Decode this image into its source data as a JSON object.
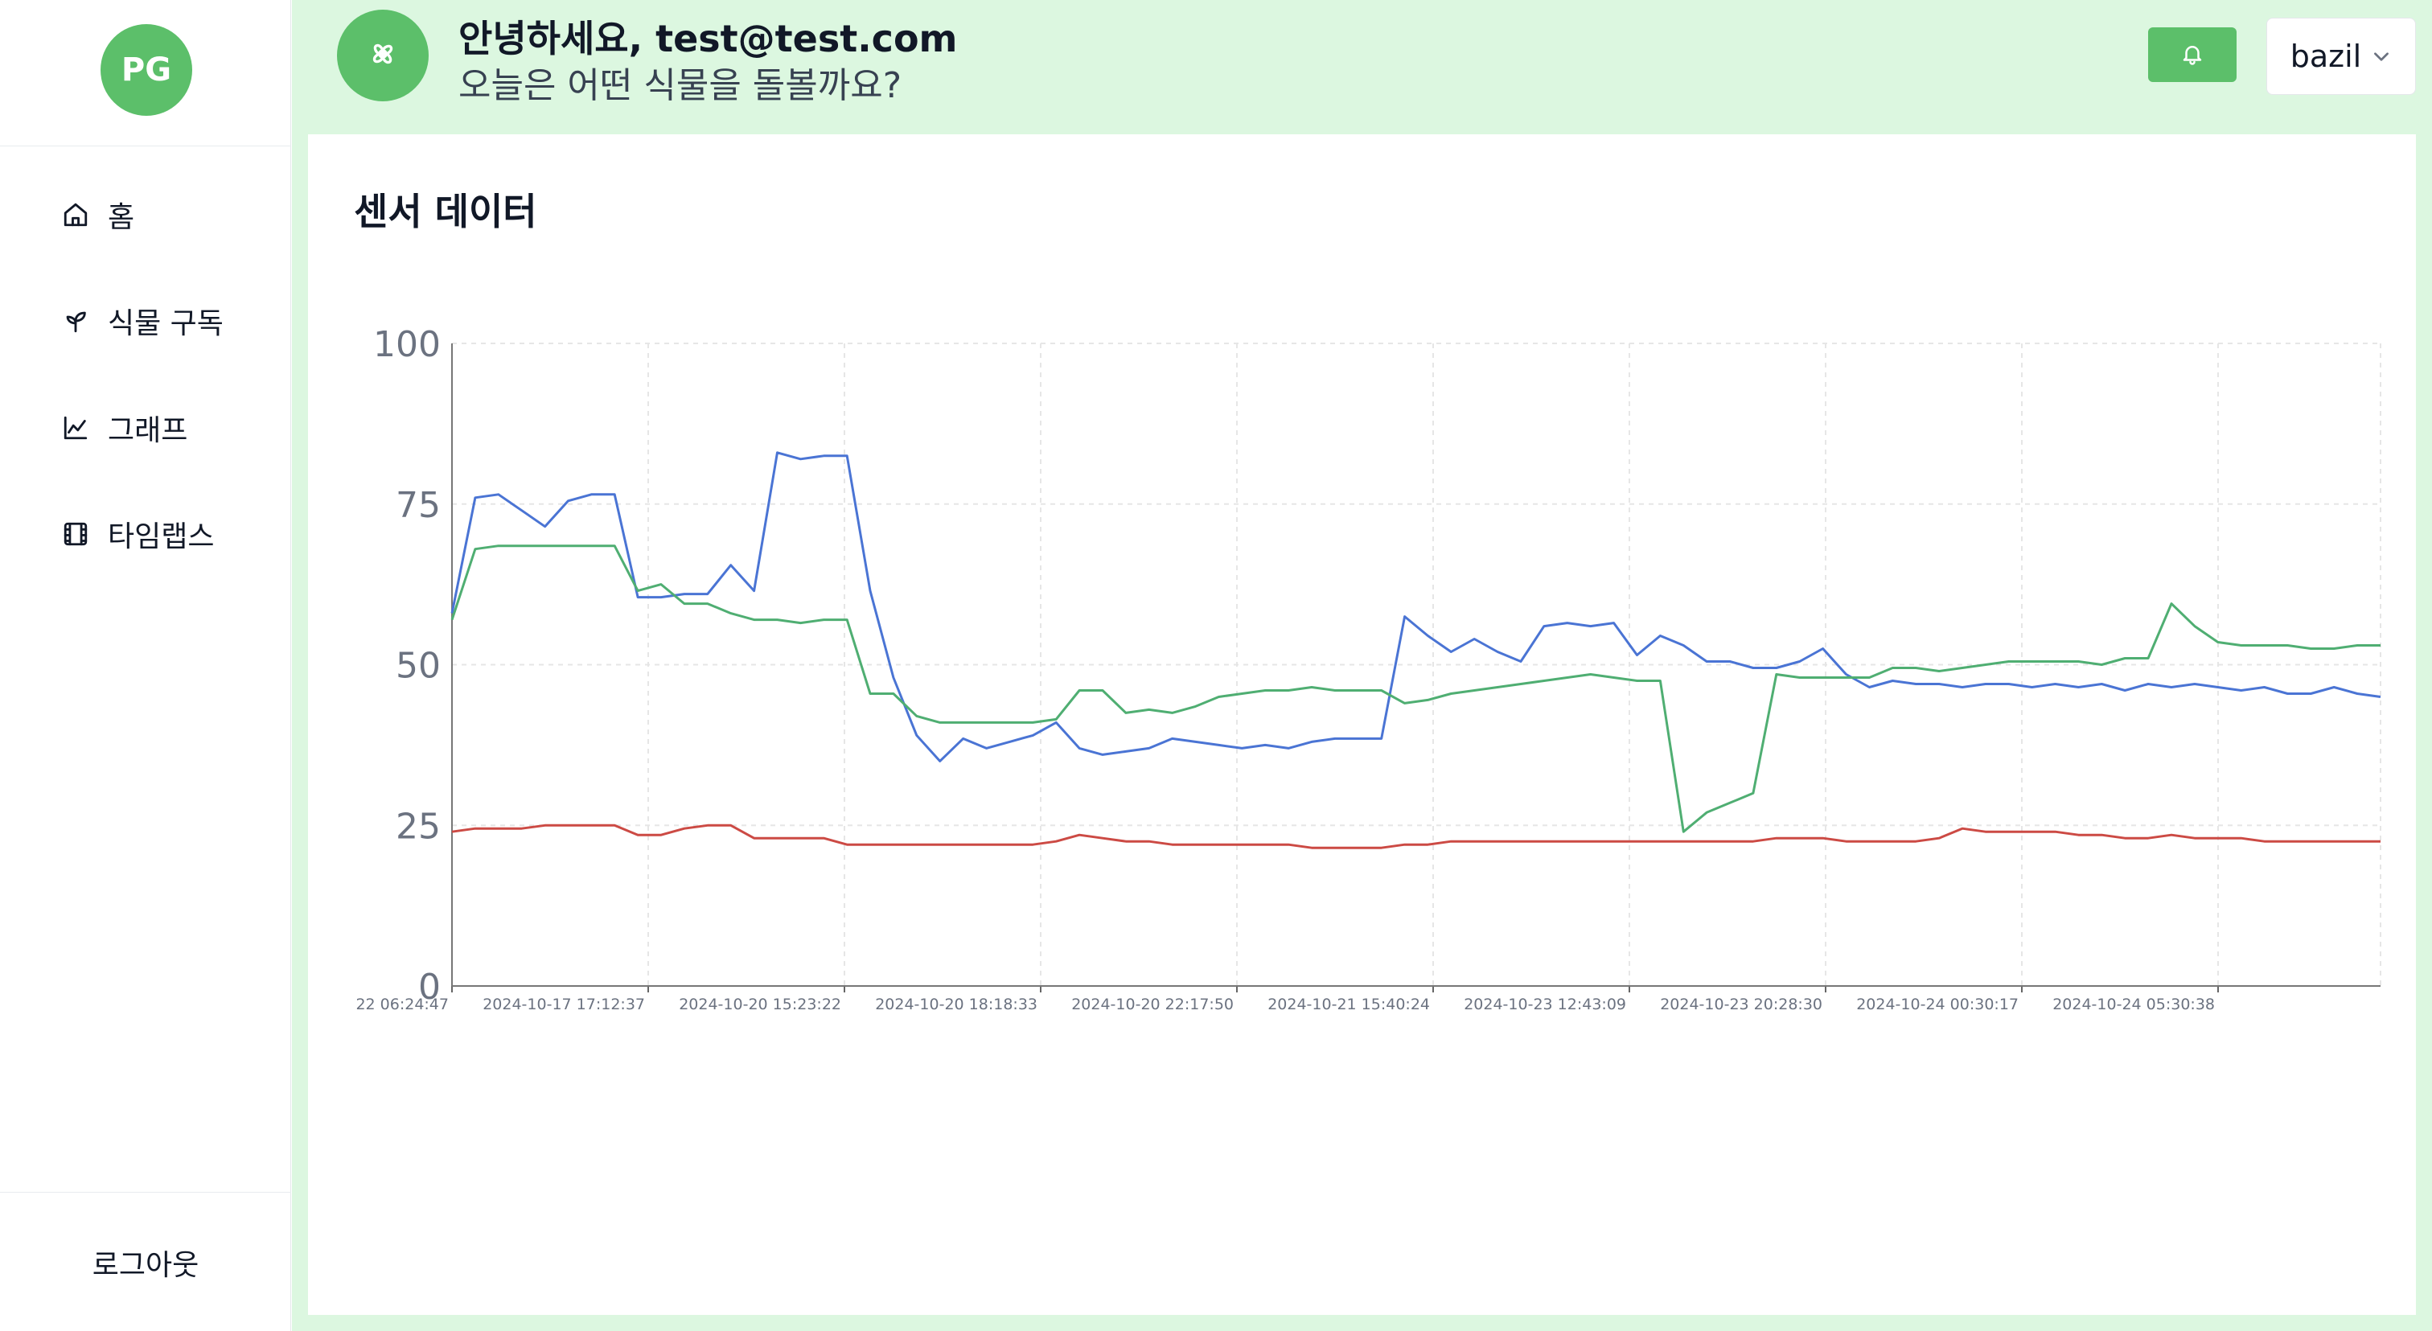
{
  "sidebar": {
    "logo_text": "PG",
    "items": [
      {
        "label": "홈",
        "icon": "home-icon"
      },
      {
        "label": "식물 구독",
        "icon": "sprout-icon"
      },
      {
        "label": "그래프",
        "icon": "chart-icon"
      },
      {
        "label": "타임랩스",
        "icon": "film-icon"
      }
    ],
    "logout_label": "로그아웃"
  },
  "header": {
    "avatar_icon": "flower-icon",
    "greeting": "안녕하세요, test@test.com",
    "subgreeting": "오늘은 어떤 식물을 돌볼까요?",
    "bell_icon": "bell-icon",
    "plant_selector": {
      "value": "bazil",
      "icon": "chevron-down-icon"
    }
  },
  "card": {
    "title": "센서 데이터"
  },
  "colors": {
    "accent": "#5cbf6a",
    "background": "#dcf7e0",
    "series_blue": "#4a74d4",
    "series_green": "#4fae72",
    "series_red": "#cc4a44"
  },
  "chart_data": {
    "type": "line",
    "title": "",
    "xlabel": "",
    "ylabel": "",
    "ylim": [
      0,
      100
    ],
    "yticks": [
      0,
      25,
      50,
      75,
      100
    ],
    "grid": true,
    "x_tick_labels": [
      "22 06:24:47",
      "2024-10-17 17:12:37",
      "2024-10-20 15:23:22",
      "2024-10-20 18:18:33",
      "2024-10-20 22:17:50",
      "2024-10-21 15:40:24",
      "2024-10-23 12:43:09",
      "2024-10-23 20:28:30",
      "2024-10-24 00:30:17",
      "2024-10-24 05:30:38"
    ],
    "series": [
      {
        "color": "#4a74d4",
        "values": [
          58,
          76,
          76.5,
          74,
          71.5,
          75.5,
          76.5,
          76.5,
          60.5,
          60.5,
          61,
          61,
          65.5,
          61.5,
          83,
          82,
          82.5,
          82.5,
          61.5,
          48,
          39,
          35,
          38.5,
          37,
          38,
          39,
          41,
          37,
          36,
          36.5,
          37,
          38.5,
          38,
          37.5,
          37,
          37.5,
          37,
          38,
          38.5,
          38.5,
          38.5,
          57.5,
          54.5,
          52,
          54,
          52,
          50.5,
          56,
          56.5,
          56,
          56.5,
          51.5,
          54.5,
          53,
          50.5,
          50.5,
          49.5,
          49.5,
          50.5,
          52.5,
          48.5,
          46.5,
          47.5,
          47,
          47,
          46.5,
          47,
          47,
          46.5,
          47,
          46.5,
          47,
          46,
          47,
          46.5,
          47,
          46.5,
          46,
          46.5,
          45.5,
          45.5,
          46.5,
          45.5,
          45
        ]
      },
      {
        "color": "#4fae72",
        "values": [
          57,
          68,
          68.5,
          68.5,
          68.5,
          68.5,
          68.5,
          68.5,
          61.5,
          62.5,
          59.5,
          59.5,
          58,
          57,
          57,
          56.5,
          57,
          57,
          45.5,
          45.5,
          42,
          41,
          41,
          41,
          41,
          41,
          41.5,
          46,
          46,
          42.5,
          43,
          42.5,
          43.5,
          45,
          45.5,
          46,
          46,
          46.5,
          46,
          46,
          46,
          44,
          44.5,
          45.5,
          46,
          46.5,
          47,
          47.5,
          48,
          48.5,
          48,
          47.5,
          47.5,
          24,
          27,
          28.5,
          30,
          48.5,
          48,
          48,
          48,
          48,
          49.5,
          49.5,
          49,
          49.5,
          50,
          50.5,
          50.5,
          50.5,
          50.5,
          50,
          51,
          51,
          59.5,
          56,
          53.5,
          53,
          53,
          53,
          52.5,
          52.5,
          53,
          53
        ]
      },
      {
        "color": "#cc4a44",
        "values": [
          24,
          24.5,
          24.5,
          24.5,
          25,
          25,
          25,
          25,
          23.5,
          23.5,
          24.5,
          25,
          25,
          23,
          23,
          23,
          23,
          22,
          22,
          22,
          22,
          22,
          22,
          22,
          22,
          22,
          22.5,
          23.5,
          23,
          22.5,
          22.5,
          22,
          22,
          22,
          22,
          22,
          22,
          21.5,
          21.5,
          21.5,
          21.5,
          22,
          22,
          22.5,
          22.5,
          22.5,
          22.5,
          22.5,
          22.5,
          22.5,
          22.5,
          22.5,
          22.5,
          22.5,
          22.5,
          22.5,
          22.5,
          23,
          23,
          23,
          22.5,
          22.5,
          22.5,
          22.5,
          23,
          24.5,
          24,
          24,
          24,
          24,
          23.5,
          23.5,
          23,
          23,
          23.5,
          23,
          23,
          23,
          22.5,
          22.5,
          22.5,
          22.5,
          22.5,
          22.5
        ]
      }
    ]
  }
}
